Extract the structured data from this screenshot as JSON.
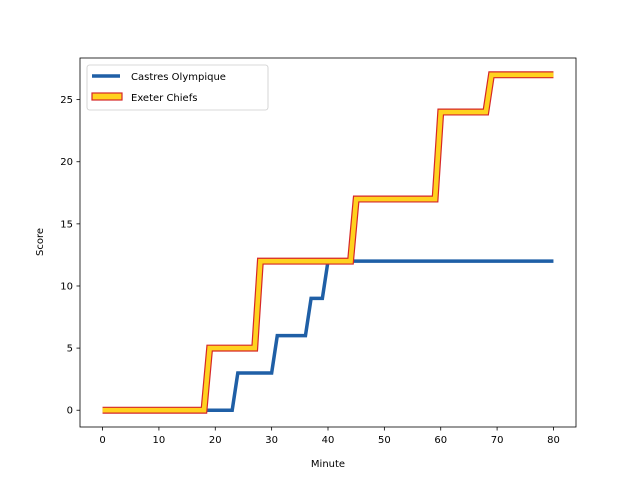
{
  "chart_data": {
    "type": "line",
    "title": "",
    "xlabel": "Minute",
    "ylabel": "Score",
    "xlim": [
      -4,
      84
    ],
    "ylim": [
      -1.35,
      28.35
    ],
    "xticks": [
      0,
      10,
      20,
      30,
      40,
      50,
      60,
      70,
      80
    ],
    "yticks": [
      0,
      5,
      10,
      15,
      20,
      25
    ],
    "grid": false,
    "legend_position": "upper left",
    "series": [
      {
        "name": "Castres Olympique",
        "color": "#1f5fa6",
        "style": "solid thick line",
        "x": [
          0,
          23,
          24,
          30,
          31,
          36,
          37,
          39,
          40,
          80
        ],
        "y": [
          0,
          0,
          3,
          3,
          6,
          6,
          9,
          9,
          12,
          12
        ]
      },
      {
        "name": "Exeter Chiefs",
        "color": "#ffd21f",
        "edge_color": "#d62728",
        "style": "outlined band line",
        "x": [
          0,
          18,
          19,
          27,
          28,
          44,
          45,
          59,
          60,
          68,
          69,
          80
        ],
        "y": [
          0,
          0,
          5,
          5,
          12,
          12,
          17,
          17,
          24,
          24,
          27,
          27
        ]
      }
    ]
  }
}
